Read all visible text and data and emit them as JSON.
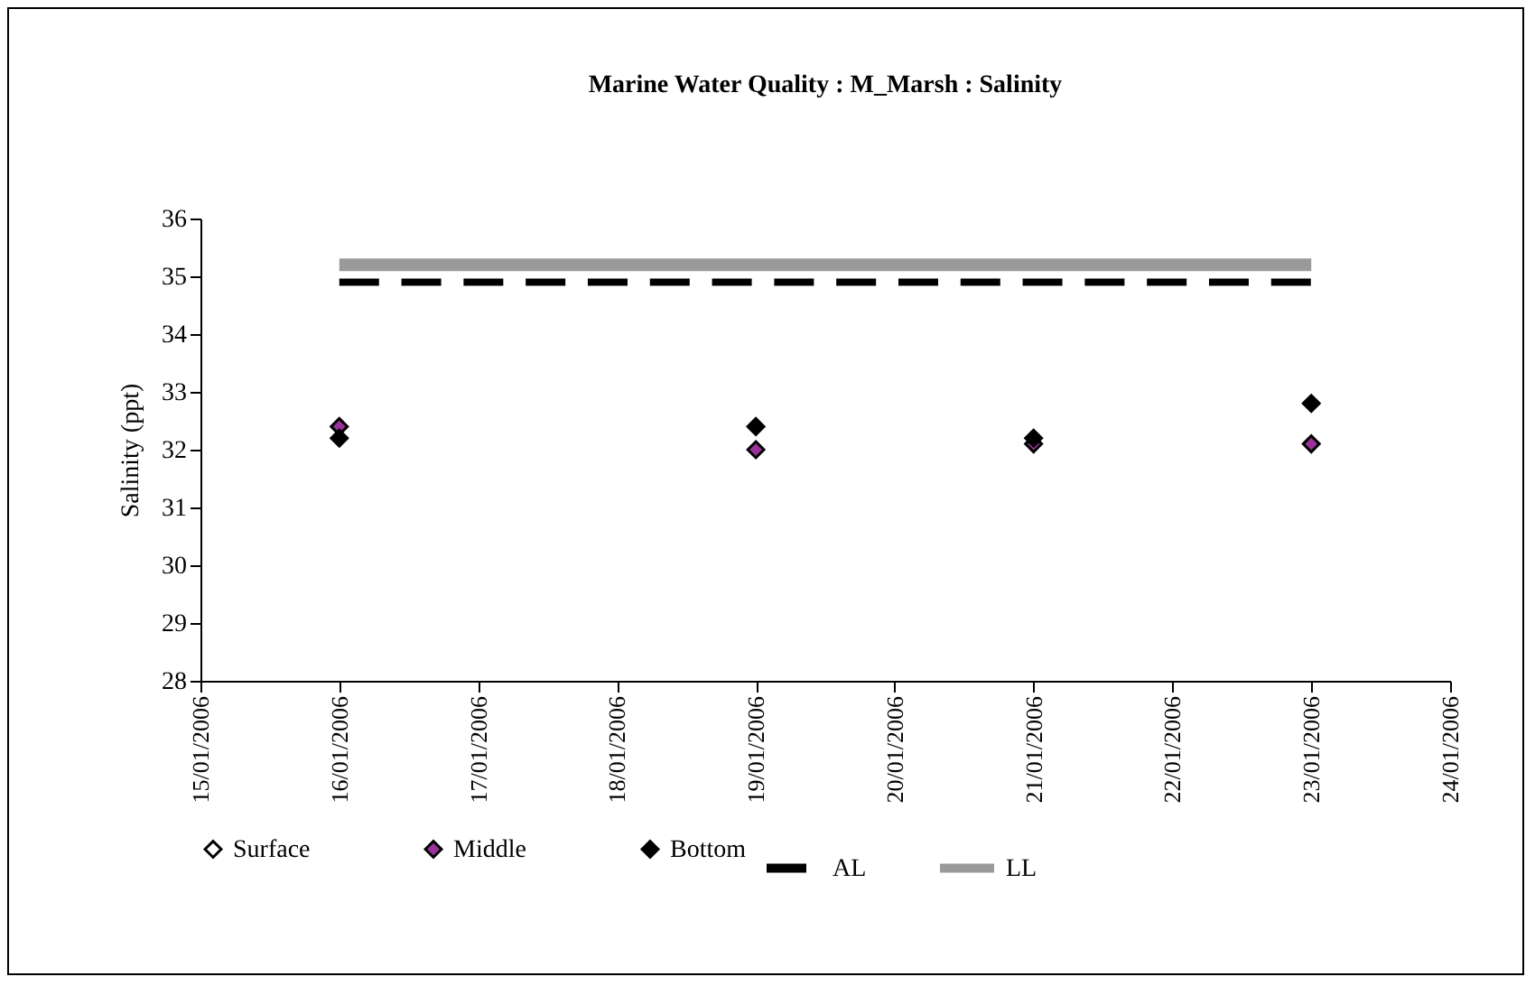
{
  "chart_data": {
    "type": "scatter",
    "title": "Marine Water Quality : M_Marsh : Salinity",
    "ylabel": "Salinity (ppt)",
    "xlim": [
      "2006-01-15",
      "2006-01-24"
    ],
    "xticks": [
      {
        "value": "2006-01-15",
        "label": "15/01/2006"
      },
      {
        "value": "2006-01-16",
        "label": "16/01/2006"
      },
      {
        "value": "2006-01-17",
        "label": "17/01/2006"
      },
      {
        "value": "2006-01-18",
        "label": "18/01/2006"
      },
      {
        "value": "2006-01-19",
        "label": "19/01/2006"
      },
      {
        "value": "2006-01-20",
        "label": "20/01/2006"
      },
      {
        "value": "2006-01-21",
        "label": "21/01/2006"
      },
      {
        "value": "2006-01-22",
        "label": "22/01/2006"
      },
      {
        "value": "2006-01-23",
        "label": "23/01/2006"
      },
      {
        "value": "2006-01-24",
        "label": "24/01/2006"
      }
    ],
    "ylim": [
      28,
      36
    ],
    "yticks": [
      28,
      29,
      30,
      31,
      32,
      33,
      34,
      35,
      36
    ],
    "grid": false,
    "legend": "bottom",
    "marker": "diamond",
    "series": [
      {
        "name": "Surface",
        "type": "scatter",
        "color": "#ffffff"
      },
      {
        "name": "Middle",
        "type": "scatter",
        "color": "#993399",
        "x": [
          "2006-01-16",
          "2006-01-19",
          "2006-01-21",
          "2006-01-23"
        ],
        "values": [
          32.4,
          32.0,
          32.1,
          32.1
        ]
      },
      {
        "name": "Bottom",
        "type": "scatter",
        "color": "#000000",
        "x": [
          "2006-01-16",
          "2006-01-19",
          "2006-01-21",
          "2006-01-23"
        ],
        "values": [
          32.2,
          32.4,
          32.2,
          32.8
        ]
      },
      {
        "name": "AL",
        "type": "line",
        "color": "#000000",
        "line_style": "dashed",
        "marker": "none",
        "x": [
          "2006-01-16",
          "2006-01-23"
        ],
        "values": [
          34.9,
          34.9
        ]
      },
      {
        "name": "LL",
        "type": "line",
        "color": "#999999",
        "line_style": "solid",
        "marker": "none",
        "x": [
          "2006-01-16",
          "2006-01-23"
        ],
        "values": [
          35.2,
          35.2
        ]
      }
    ]
  }
}
